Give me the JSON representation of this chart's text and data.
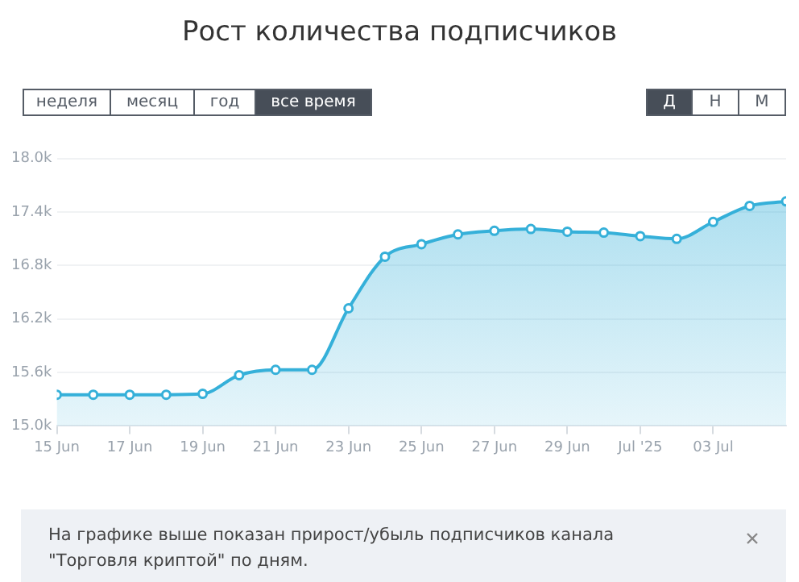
{
  "chart_data": {
    "type": "area",
    "title": "Рост количества подписчиков",
    "x": [
      "2025-06-15",
      "2025-06-16",
      "2025-06-17",
      "2025-06-18",
      "2025-06-19",
      "2025-06-20",
      "2025-06-21",
      "2025-06-22",
      "2025-06-23",
      "2025-06-24",
      "2025-06-25",
      "2025-06-26",
      "2025-06-27",
      "2025-06-28",
      "2025-06-29",
      "2025-06-30",
      "2025-07-01",
      "2025-07-02",
      "2025-07-03",
      "2025-07-04",
      "2025-07-05"
    ],
    "series": [
      {
        "color": "#35b0d9",
        "values": [
          15350,
          15350,
          15350,
          15350,
          15360,
          15570,
          15630,
          15630,
          16320,
          16900,
          17040,
          17150,
          17190,
          17210,
          17180,
          17170,
          17130,
          17100,
          17290,
          17470,
          17520
        ]
      }
    ],
    "xlim": [
      "2025-06-15",
      "2025-07-05"
    ],
    "xticks": [
      {
        "value": "2025-06-15",
        "label": "15 Jun"
      },
      {
        "value": "2025-06-17",
        "label": "17 Jun"
      },
      {
        "value": "2025-06-19",
        "label": "19 Jun"
      },
      {
        "value": "2025-06-21",
        "label": "21 Jun"
      },
      {
        "value": "2025-06-23",
        "label": "23 Jun"
      },
      {
        "value": "2025-06-25",
        "label": "25 Jun"
      },
      {
        "value": "2025-06-27",
        "label": "27 Jun"
      },
      {
        "value": "2025-06-29",
        "label": "29 Jun"
      },
      {
        "value": "2025-07-01",
        "label": "Jul '25"
      },
      {
        "value": "2025-07-03",
        "label": "03 Jul"
      }
    ],
    "ylim": [
      15000,
      18000
    ],
    "yticks": [
      {
        "value": 15000,
        "label": "15.0k"
      },
      {
        "value": 15600,
        "label": "15.6k"
      },
      {
        "value": 16200,
        "label": "16.2k"
      },
      {
        "value": 16800,
        "label": "16.8k"
      },
      {
        "value": 17400,
        "label": "17.4k"
      },
      {
        "value": 18000,
        "label": "18.0k"
      }
    ],
    "grid": "y",
    "marker": "circle",
    "legend": false,
    "annotations": [
      "неделя",
      "месяц",
      "год",
      "все время",
      "Д",
      "Н",
      "М",
      "На графике выше показан прирост/убыль подписчиков канала \"Торговля криптой\" по дням."
    ]
  }
}
